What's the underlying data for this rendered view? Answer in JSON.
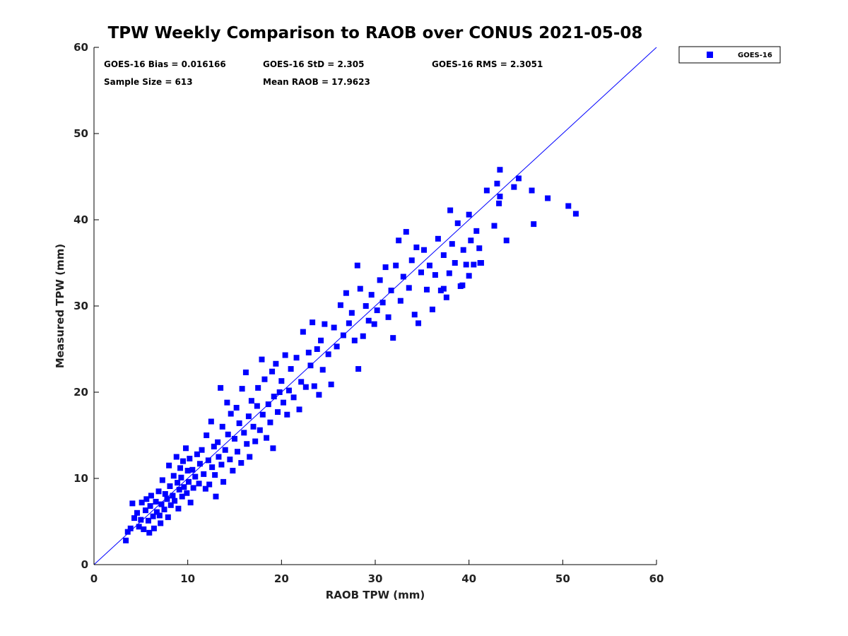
{
  "chart_data": {
    "type": "scatter",
    "title": "TPW Weekly Comparison to RAOB over CONUS 2021-05-08",
    "xlabel": "RAOB TPW (mm)",
    "ylabel": "Measured TPW (mm)",
    "xlim": [
      0,
      60
    ],
    "ylim": [
      0,
      60
    ],
    "xticks": [
      "0",
      "10",
      "20",
      "30",
      "40",
      "50",
      "60"
    ],
    "yticks": [
      "0",
      "10",
      "20",
      "30",
      "40",
      "50",
      "60"
    ],
    "grid": false,
    "legend": {
      "position": "outside-top-right",
      "entries": [
        "GOES-16"
      ]
    },
    "marker_color": "#0000ff",
    "reference_line": {
      "label": "1:1",
      "color": "#0000ff"
    },
    "stats": [
      "GOES-16 Bias = 0.016166",
      "GOES-16 StD = 2.305",
      "GOES-16 RMS = 2.3051",
      "Sample Size = 613",
      "Mean RAOB = 17.9623"
    ],
    "series": [
      {
        "name": "GOES-16",
        "points": [
          [
            3.4,
            2.8
          ],
          [
            3.6,
            3.8
          ],
          [
            3.9,
            4.2
          ],
          [
            4.1,
            7.1
          ],
          [
            4.3,
            5.4
          ],
          [
            4.6,
            6.0
          ],
          [
            4.8,
            4.4
          ],
          [
            5.0,
            5.2
          ],
          [
            5.1,
            7.2
          ],
          [
            5.3,
            4.1
          ],
          [
            5.5,
            6.3
          ],
          [
            5.6,
            7.6
          ],
          [
            5.8,
            5.1
          ],
          [
            5.9,
            3.7
          ],
          [
            6.0,
            6.8
          ],
          [
            6.1,
            8.0
          ],
          [
            6.3,
            5.6
          ],
          [
            6.4,
            4.2
          ],
          [
            6.6,
            7.3
          ],
          [
            6.7,
            6.1
          ],
          [
            6.9,
            8.5
          ],
          [
            7.0,
            5.7
          ],
          [
            7.1,
            4.8
          ],
          [
            7.2,
            7.0
          ],
          [
            7.3,
            9.8
          ],
          [
            7.5,
            6.4
          ],
          [
            7.6,
            8.2
          ],
          [
            7.8,
            7.6
          ],
          [
            7.9,
            5.5
          ],
          [
            8.0,
            11.5
          ],
          [
            8.1,
            9.1
          ],
          [
            8.2,
            6.9
          ],
          [
            8.4,
            8.0
          ],
          [
            8.5,
            10.3
          ],
          [
            8.6,
            7.4
          ],
          [
            8.8,
            12.5
          ],
          [
            8.9,
            9.5
          ],
          [
            9.0,
            6.5
          ],
          [
            9.1,
            8.7
          ],
          [
            9.2,
            11.2
          ],
          [
            9.3,
            10.1
          ],
          [
            9.4,
            7.9
          ],
          [
            9.5,
            12.0
          ],
          [
            9.6,
            9.0
          ],
          [
            9.8,
            13.5
          ],
          [
            9.9,
            8.3
          ],
          [
            10.0,
            10.9
          ],
          [
            10.1,
            9.6
          ],
          [
            10.2,
            12.3
          ],
          [
            10.3,
            7.2
          ],
          [
            10.5,
            11.0
          ],
          [
            10.6,
            8.9
          ],
          [
            10.8,
            10.2
          ],
          [
            11.0,
            12.8
          ],
          [
            11.2,
            9.4
          ],
          [
            11.3,
            11.7
          ],
          [
            11.5,
            13.3
          ],
          [
            11.7,
            10.5
          ],
          [
            11.9,
            8.8
          ],
          [
            12.0,
            15.0
          ],
          [
            12.2,
            12.1
          ],
          [
            12.3,
            9.3
          ],
          [
            12.5,
            16.6
          ],
          [
            12.6,
            11.3
          ],
          [
            12.8,
            13.7
          ],
          [
            12.9,
            10.4
          ],
          [
            13.0,
            7.9
          ],
          [
            13.2,
            14.2
          ],
          [
            13.3,
            12.5
          ],
          [
            13.5,
            20.5
          ],
          [
            13.6,
            11.6
          ],
          [
            13.7,
            16.0
          ],
          [
            13.8,
            9.6
          ],
          [
            14.0,
            13.3
          ],
          [
            14.2,
            18.8
          ],
          [
            14.3,
            15.1
          ],
          [
            14.5,
            12.2
          ],
          [
            14.6,
            17.5
          ],
          [
            14.8,
            10.9
          ],
          [
            15.0,
            14.6
          ],
          [
            15.2,
            18.2
          ],
          [
            15.3,
            13.1
          ],
          [
            15.5,
            16.4
          ],
          [
            15.7,
            11.8
          ],
          [
            15.8,
            20.4
          ],
          [
            16.0,
            15.3
          ],
          [
            16.2,
            22.3
          ],
          [
            16.3,
            14.0
          ],
          [
            16.5,
            17.2
          ],
          [
            16.6,
            12.5
          ],
          [
            16.8,
            19.0
          ],
          [
            17.0,
            16.0
          ],
          [
            17.2,
            14.3
          ],
          [
            17.4,
            18.4
          ],
          [
            17.5,
            20.5
          ],
          [
            17.7,
            15.6
          ],
          [
            17.9,
            23.8
          ],
          [
            18.0,
            17.4
          ],
          [
            18.2,
            21.5
          ],
          [
            18.4,
            14.7
          ],
          [
            18.6,
            18.6
          ],
          [
            18.8,
            16.5
          ],
          [
            19.0,
            22.4
          ],
          [
            19.1,
            13.5
          ],
          [
            19.2,
            19.5
          ],
          [
            19.4,
            23.3
          ],
          [
            19.6,
            17.7
          ],
          [
            19.8,
            20.0
          ],
          [
            20.0,
            21.3
          ],
          [
            20.2,
            18.8
          ],
          [
            20.4,
            24.3
          ],
          [
            20.6,
            17.4
          ],
          [
            20.8,
            20.2
          ],
          [
            21.0,
            22.7
          ],
          [
            21.3,
            19.4
          ],
          [
            21.6,
            24.0
          ],
          [
            21.9,
            18.0
          ],
          [
            22.1,
            21.2
          ],
          [
            22.3,
            27.0
          ],
          [
            22.6,
            20.6
          ],
          [
            22.9,
            24.6
          ],
          [
            23.1,
            23.1
          ],
          [
            23.3,
            28.1
          ],
          [
            23.5,
            20.7
          ],
          [
            23.8,
            25.0
          ],
          [
            24.0,
            19.7
          ],
          [
            24.2,
            26.0
          ],
          [
            24.4,
            22.6
          ],
          [
            24.6,
            27.9
          ],
          [
            25.0,
            24.4
          ],
          [
            25.3,
            20.9
          ],
          [
            25.6,
            27.5
          ],
          [
            25.9,
            25.3
          ],
          [
            26.3,
            30.1
          ],
          [
            26.6,
            26.6
          ],
          [
            26.9,
            31.5
          ],
          [
            27.2,
            28.0
          ],
          [
            27.5,
            29.2
          ],
          [
            27.8,
            26.0
          ],
          [
            28.1,
            34.7
          ],
          [
            28.2,
            22.7
          ],
          [
            28.4,
            32.0
          ],
          [
            28.7,
            26.5
          ],
          [
            29.0,
            30.0
          ],
          [
            29.3,
            28.3
          ],
          [
            29.6,
            31.3
          ],
          [
            29.9,
            27.9
          ],
          [
            30.2,
            29.5
          ],
          [
            30.5,
            33.0
          ],
          [
            30.8,
            30.4
          ],
          [
            31.1,
            34.5
          ],
          [
            31.4,
            28.7
          ],
          [
            31.7,
            31.8
          ],
          [
            31.9,
            26.3
          ],
          [
            32.2,
            34.7
          ],
          [
            32.5,
            37.6
          ],
          [
            32.7,
            30.6
          ],
          [
            33.0,
            33.4
          ],
          [
            33.3,
            38.6
          ],
          [
            33.6,
            32.1
          ],
          [
            33.9,
            35.3
          ],
          [
            34.2,
            29.0
          ],
          [
            34.4,
            36.8
          ],
          [
            34.6,
            28.0
          ],
          [
            34.9,
            33.9
          ],
          [
            35.2,
            36.5
          ],
          [
            35.5,
            31.9
          ],
          [
            35.8,
            34.7
          ],
          [
            36.1,
            29.6
          ],
          [
            36.4,
            33.6
          ],
          [
            36.7,
            37.8
          ],
          [
            37.0,
            31.8
          ],
          [
            37.3,
            35.9
          ],
          [
            37.6,
            31.0
          ],
          [
            37.9,
            33.8
          ],
          [
            38.2,
            37.2
          ],
          [
            38.5,
            35.0
          ],
          [
            38.8,
            39.6
          ],
          [
            39.1,
            32.3
          ],
          [
            39.4,
            36.5
          ],
          [
            39.7,
            34.8
          ],
          [
            40.0,
            33.5
          ],
          [
            40.2,
            37.6
          ],
          [
            40.5,
            34.8
          ],
          [
            40.8,
            38.7
          ],
          [
            41.1,
            36.7
          ],
          [
            41.3,
            35.0
          ],
          [
            43.3,
            45.8
          ],
          [
            45.3,
            44.8
          ],
          [
            41.9,
            43.4
          ],
          [
            43.0,
            44.2
          ],
          [
            44.8,
            43.8
          ],
          [
            46.7,
            43.4
          ],
          [
            48.4,
            42.5
          ],
          [
            43.3,
            42.7
          ],
          [
            43.2,
            41.9
          ],
          [
            50.6,
            41.6
          ],
          [
            51.4,
            40.7
          ],
          [
            46.9,
            39.5
          ],
          [
            42.7,
            39.3
          ],
          [
            44.0,
            37.6
          ],
          [
            38.0,
            41.1
          ],
          [
            40.0,
            40.6
          ],
          [
            41.2,
            35.0
          ],
          [
            37.3,
            32.0
          ],
          [
            39.3,
            32.4
          ]
        ]
      }
    ]
  }
}
